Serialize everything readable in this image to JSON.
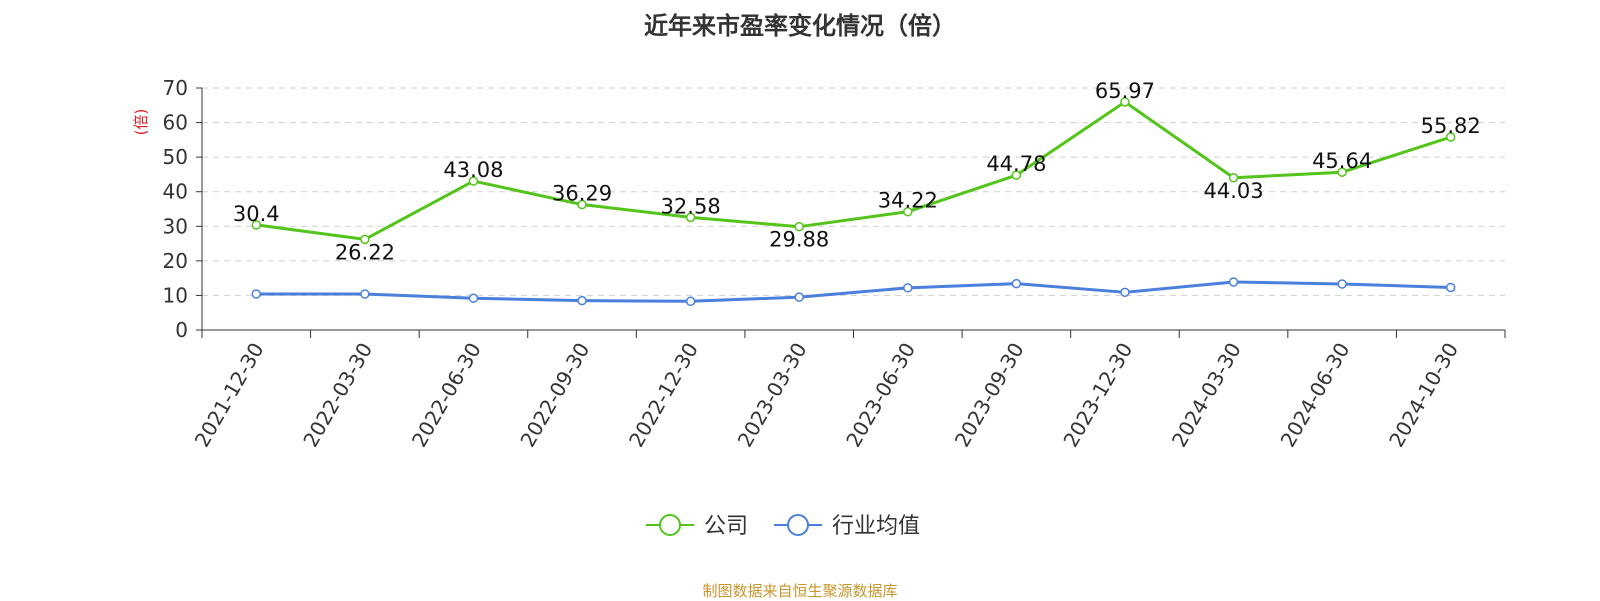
{
  "chart_data": {
    "type": "line",
    "title": "近年来市盈率变化情况（倍）",
    "ylabel": "(倍)",
    "xlabel": "",
    "categories": [
      "2021-12-30",
      "2022-03-30",
      "2022-06-30",
      "2022-09-30",
      "2022-12-30",
      "2023-03-30",
      "2023-06-30",
      "2023-09-30",
      "2023-12-30",
      "2024-03-30",
      "2024-06-30",
      "2024-10-30"
    ],
    "ylim": [
      0,
      70
    ],
    "yticks": [
      0,
      10,
      20,
      30,
      40,
      50,
      60,
      70
    ],
    "grid": true,
    "legend_position": "bottom",
    "series": [
      {
        "name": "公司",
        "color": "#52c41a",
        "values": [
          30.4,
          26.22,
          43.08,
          36.29,
          32.58,
          29.88,
          34.22,
          44.78,
          65.97,
          44.03,
          45.64,
          55.82
        ],
        "labels": [
          "30.4",
          "26.22",
          "43.08",
          "36.29",
          "32.58",
          "29.88",
          "34.22",
          "44.78",
          "65.97",
          "44.03",
          "45.64",
          "55.82"
        ]
      },
      {
        "name": "行业均值",
        "color": "#4a7fdc",
        "values": [
          10.4,
          10.4,
          9.2,
          8.5,
          8.3,
          9.5,
          12.2,
          13.4,
          10.9,
          13.9,
          13.3,
          12.3
        ]
      }
    ]
  },
  "source": "制图数据来自恒生聚源数据库"
}
